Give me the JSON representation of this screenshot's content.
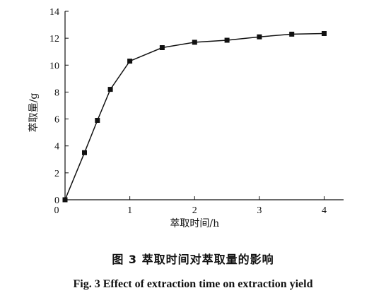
{
  "chart_data": {
    "type": "line",
    "x": [
      0,
      0.3,
      0.5,
      0.7,
      1.0,
      1.5,
      2.0,
      2.5,
      3.0,
      3.5,
      4.0
    ],
    "series": [
      {
        "values": [
          0,
          3.5,
          5.9,
          8.2,
          10.3,
          11.3,
          11.7,
          11.85,
          12.1,
          12.3,
          12.35
        ]
      }
    ],
    "xlabel": "萃取时间/h",
    "ylabel": "萃取量/g",
    "xlim": [
      0,
      4.3
    ],
    "ylim": [
      0,
      14
    ],
    "xticks": [
      0,
      1,
      2,
      3,
      4
    ],
    "yticks": [
      2,
      4,
      6,
      8,
      10,
      12,
      14
    ],
    "x_origin_label": "0",
    "y_origin_label": "0",
    "grid": false,
    "marker": "square",
    "line_color": "#111111"
  },
  "caption": {
    "cn": "图 3   萃取时间对萃取量的影响",
    "en": "Fig. 3   Effect of extraction time on extraction yield"
  }
}
